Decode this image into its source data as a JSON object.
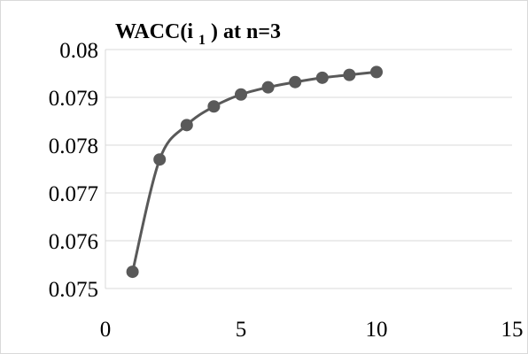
{
  "chart_data": {
    "type": "scatter",
    "title": {
      "prefix": "WACC(i",
      "subscript": "1",
      "suffix": ") at n=3"
    },
    "xlabel": "",
    "ylabel": "",
    "xlim": [
      0,
      15
    ],
    "ylim": [
      0.075,
      0.08
    ],
    "x_ticks": [
      "0",
      "5",
      "10",
      "15"
    ],
    "y_ticks": [
      "0.075",
      "0.076",
      "0.077",
      "0.078",
      "0.079",
      "0.08"
    ],
    "grid": true,
    "smooth_line": true,
    "series_color": "#595959",
    "grid_color": "#d9d9d9",
    "x": [
      1,
      2,
      3,
      4,
      5,
      6,
      7,
      8,
      9,
      10
    ],
    "y": [
      0.07535,
      0.0777,
      0.07842,
      0.07881,
      0.07906,
      0.07921,
      0.07932,
      0.07941,
      0.07947,
      0.07953
    ]
  }
}
